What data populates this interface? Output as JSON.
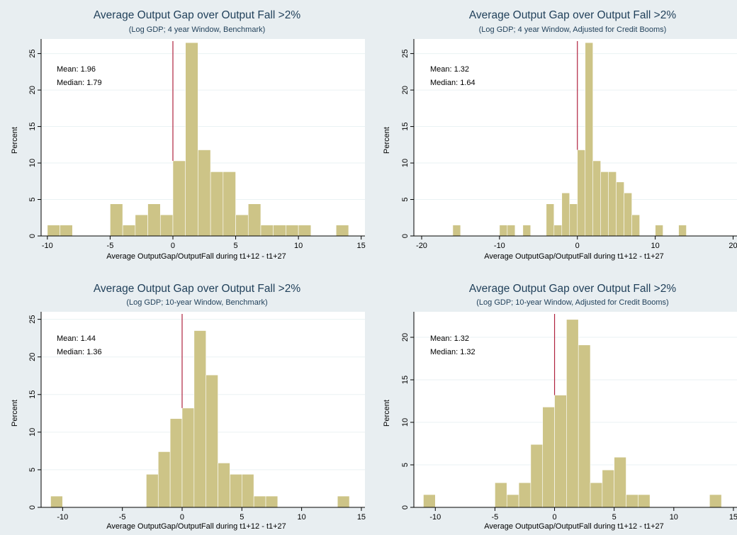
{
  "chart_data": [
    {
      "type": "bar",
      "title": "Average Output Gap over Output Fall >2%",
      "subtitle": "(Log GDP; 4 year Window, Benchmark)",
      "xlabel": "Average OutputGap/OutputFall during  t1+12 - t1+27",
      "ylabel": "Percent",
      "xlim": [
        -10.5,
        15.3
      ],
      "ylim": [
        0,
        27
      ],
      "xticks": [
        -10,
        -5,
        0,
        5,
        10,
        15
      ],
      "yticks": [
        0,
        5,
        10,
        15,
        20,
        25
      ],
      "bin_width": 1,
      "bins_start": [
        -10,
        -9,
        -5,
        -4,
        -3,
        -2,
        -1,
        0,
        1,
        2,
        3,
        4,
        5,
        6,
        7,
        8,
        9,
        10,
        13
      ],
      "values": [
        1.5,
        1.5,
        4.4,
        1.5,
        2.9,
        4.4,
        2.9,
        10.3,
        26.5,
        11.8,
        8.8,
        8.8,
        2.9,
        4.4,
        1.5,
        1.5,
        1.5,
        1.5,
        1.5
      ],
      "mean_label": "Mean:   1.96",
      "median_label": "Median: 1.79",
      "reference_x": 0,
      "bar_color": "#cdc487",
      "reference_color": "#b0233f"
    },
    {
      "type": "bar",
      "title": "Average Output Gap over Output Fall >2%",
      "subtitle": "(Log GDP; 4 year Window, Adjusted for Credit Booms)",
      "xlabel": "Average OutputGap/OutputFall during  t1+12 - t1+27",
      "ylabel": "Percent",
      "xlim": [
        -21,
        20.5
      ],
      "ylim": [
        0,
        27
      ],
      "xticks": [
        -20,
        -10,
        0,
        10,
        20
      ],
      "xtick_labels": [
        "-20",
        "-10",
        "0",
        "10",
        "20"
      ],
      "yticks": [
        0,
        5,
        10,
        15,
        20,
        25
      ],
      "bin_width": 1,
      "bins_start": [
        -16,
        -10,
        -9,
        -7,
        -4,
        -3,
        -2,
        -1,
        0,
        1,
        2,
        3,
        4,
        5,
        6,
        7,
        10,
        13
      ],
      "values": [
        1.5,
        1.5,
        1.5,
        1.5,
        4.4,
        1.5,
        5.9,
        4.4,
        11.8,
        26.5,
        10.3,
        8.8,
        8.8,
        7.4,
        5.9,
        2.9,
        1.5,
        1.5
      ],
      "mean_label": "Mean:    1.32",
      "median_label": "Median: 1.64",
      "reference_x": 0,
      "bar_color": "#cdc487",
      "reference_color": "#b0233f"
    },
    {
      "type": "bar",
      "title": "Average Output Gap over Output Fall >2%",
      "subtitle": "(Log GDP; 10-year Window, Benchmark)",
      "xlabel": "Average OutputGap/OutputFall during  t1+12 - t1+27",
      "ylabel": "Percent",
      "xlim": [
        -11.8,
        15.3
      ],
      "ylim": [
        0,
        26
      ],
      "xticks": [
        -10,
        -5,
        0,
        5,
        10,
        15
      ],
      "yticks": [
        0,
        5,
        10,
        15,
        20,
        25
      ],
      "bin_width": 1,
      "bins_start": [
        -11,
        -3,
        -2,
        -1,
        0,
        1,
        2,
        3,
        4,
        5,
        6,
        7,
        13
      ],
      "values": [
        1.5,
        4.4,
        7.4,
        11.8,
        13.2,
        23.5,
        17.6,
        5.9,
        4.4,
        4.4,
        1.5,
        1.5,
        1.5
      ],
      "mean_label": "Mean:   1.44",
      "median_label": "Median: 1.36",
      "reference_x": 0,
      "bar_color": "#cdc487",
      "reference_color": "#b0233f"
    },
    {
      "type": "bar",
      "title": "Average Output Gap over Output Fall >2%",
      "subtitle": "(Log GDP; 10-year Window, Adjusted for Credit Booms)",
      "xlabel": "Average OutputGap/OutputFall during  t1+12 - t1+27",
      "ylabel": "Percent",
      "xlim": [
        -11.8,
        15.3
      ],
      "ylim": [
        0,
        23
      ],
      "xticks": [
        -10,
        -5,
        0,
        5,
        10,
        15
      ],
      "yticks": [
        0,
        5,
        10,
        15,
        20
      ],
      "bin_width": 1,
      "bins_start": [
        -11,
        -5,
        -4,
        -3,
        -2,
        -1,
        0,
        1,
        2,
        3,
        4,
        5,
        6,
        7,
        13
      ],
      "values": [
        1.5,
        2.9,
        1.5,
        2.9,
        7.4,
        11.8,
        13.2,
        22.1,
        19.1,
        2.9,
        4.4,
        5.9,
        1.5,
        1.5,
        1.5
      ],
      "mean_label": "Mean:    1.32",
      "median_label": "Median: 1.32",
      "reference_x": 0,
      "bar_color": "#cdc487",
      "reference_color": "#b0233f"
    }
  ]
}
